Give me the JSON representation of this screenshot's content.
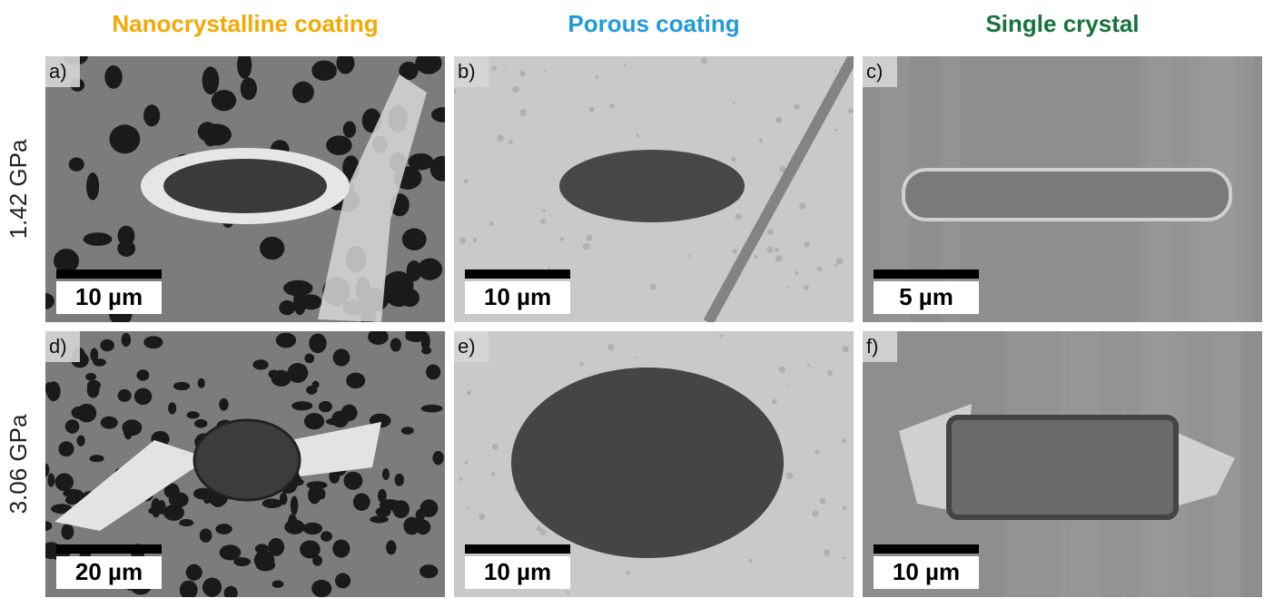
{
  "column_headers": [
    {
      "text": "Nanocrystalline coating",
      "color": "#f5a800"
    },
    {
      "text": "Porous coating",
      "color": "#1f9bdc"
    },
    {
      "text": "Single crystal",
      "color": "#17733a"
    }
  ],
  "row_labels": [
    "1.42 GPa",
    "3.06 GPa"
  ],
  "panels": [
    {
      "label": "a)",
      "scale_bar": "10 µm"
    },
    {
      "label": "b)",
      "scale_bar": "10 µm"
    },
    {
      "label": "c)",
      "scale_bar": "5 µm"
    },
    {
      "label": "d)",
      "scale_bar": "20 µm"
    },
    {
      "label": "e)",
      "scale_bar": "10 µm"
    },
    {
      "label": "f)",
      "scale_bar": "10 µm"
    }
  ]
}
